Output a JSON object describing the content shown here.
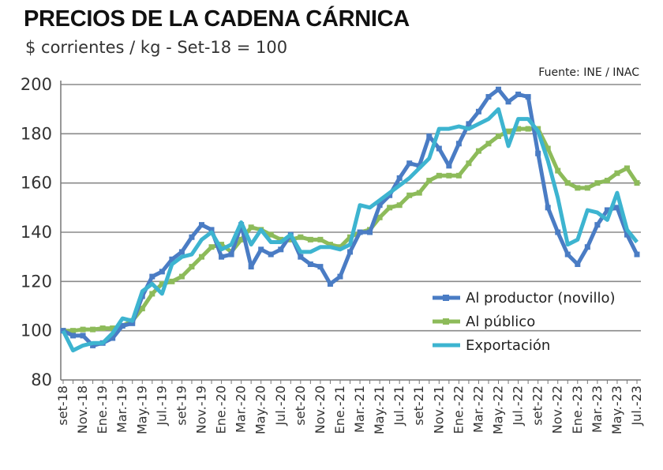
{
  "chart_data": {
    "type": "line",
    "title": "PRECIOS DE LA CADENA CÁRNICA",
    "subtitle": "$ corrientes / kg - Set-18 = 100",
    "source": "Fuente: INE / INAC",
    "xlabel": "",
    "ylabel": "",
    "ylim": [
      80,
      200
    ],
    "yticks": [
      80,
      100,
      120,
      140,
      160,
      180,
      200
    ],
    "grid": true,
    "legend_position": "bottom-right",
    "x_tick_labels": [
      "set-18",
      "Nov.-18",
      "Ene.-19",
      "Mar.-19",
      "May.-19",
      "Jul.-19",
      "set-19",
      "Nov.-19",
      "Ene.-20",
      "Mar.-20",
      "May.-20",
      "Jul.-20",
      "set-20",
      "Nov.-20",
      "Ene.-21",
      "Mar.-21",
      "May.-21",
      "Jul.-21",
      "set-21",
      "Nov.-21",
      "Ene.-22",
      "Mar.-22",
      "May.-22",
      "Jul.-22",
      "set-22",
      "Nov.-22",
      "Ene.-23",
      "Mar.-23",
      "May.-23",
      "Jul.-23"
    ],
    "n_months": 59,
    "series": [
      {
        "name": "Al productor (novillo)",
        "color": "#4a7cc4",
        "marker": "square",
        "values": [
          100,
          98,
          98,
          94,
          95,
          97,
          102,
          103,
          114,
          122,
          124,
          129,
          132,
          138,
          143,
          141,
          130,
          131,
          143,
          126,
          133,
          131,
          133,
          139,
          130,
          127,
          126,
          119,
          122,
          132,
          140,
          140,
          151,
          155,
          162,
          168,
          167,
          179,
          174,
          167,
          176,
          184,
          189,
          195,
          198,
          193,
          196,
          195,
          172,
          150,
          140,
          131,
          127,
          134,
          143,
          149,
          150,
          139,
          131
        ]
      },
      {
        "name": "Al público",
        "color": "#8dbb5a",
        "marker": "square",
        "values": [
          100,
          100,
          100.5,
          100.5,
          101,
          101,
          102,
          104,
          109,
          115,
          119,
          120,
          122,
          126,
          130,
          134,
          135,
          132,
          137,
          142,
          141,
          139,
          137,
          137,
          138,
          137,
          137,
          135,
          134,
          138,
          140,
          141,
          146,
          150,
          151,
          155,
          156,
          161,
          163,
          163,
          163,
          168,
          173,
          176,
          179,
          181,
          182,
          182,
          182,
          174,
          165,
          160,
          158,
          158,
          160,
          161,
          164,
          166,
          160
        ]
      },
      {
        "name": "Exportación",
        "color": "#3db4d0",
        "marker": "none",
        "values": [
          100,
          92,
          94,
          95,
          95,
          99,
          105,
          104,
          116,
          119,
          115,
          127,
          130,
          131,
          137,
          140,
          133,
          135,
          144,
          135,
          141,
          136,
          136,
          139,
          132,
          132,
          134,
          134,
          133,
          135,
          151,
          150,
          153,
          156,
          159,
          162,
          166,
          170,
          182,
          182,
          183,
          182,
          184,
          186,
          190,
          175,
          186,
          186,
          181,
          169,
          154,
          135,
          137,
          149,
          148,
          145,
          156,
          141,
          136
        ]
      }
    ]
  }
}
